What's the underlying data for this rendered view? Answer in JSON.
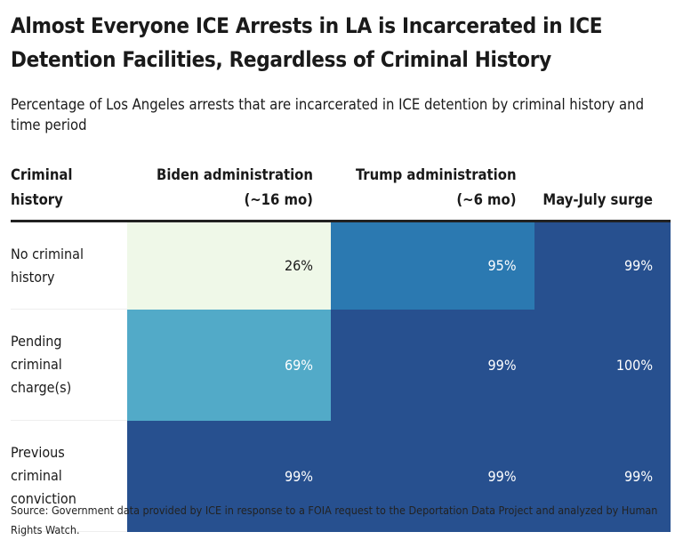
{
  "title": "Almost Everyone ICE Arrests in LA is Incarcerated in ICE Detention Facilities, Regardless of Criminal History",
  "subtitle": "Percentage of Los Angeles arrests that are incarcerated in ICE detention by criminal history and time period",
  "chart_data": {
    "type": "heatmap",
    "columns": [
      "Criminal history",
      "Biden administration (~16 mo)",
      "Trump administration (~6 mo)",
      "May-July surge"
    ],
    "rows": [
      {
        "label": "No criminal history",
        "values": [
          26,
          95,
          99
        ],
        "display": [
          "26%",
          "95%",
          "99%"
        ]
      },
      {
        "label": "Pending criminal charge(s)",
        "values": [
          69,
          99,
          100
        ],
        "display": [
          "69%",
          "99%",
          "100%"
        ]
      },
      {
        "label": "Previous criminal conviction",
        "values": [
          99,
          99,
          99
        ],
        "display": [
          "99%",
          "99%",
          "99%"
        ]
      }
    ],
    "colors": {
      "low": "#eff8e8",
      "mid": "#52aac8",
      "high": "#2b79b1",
      "max": "#27508f"
    }
  },
  "source": "Source: Government data provided by ICE in response to a FOIA request to the Deportation Data Project and analyzed by Human Rights Watch."
}
